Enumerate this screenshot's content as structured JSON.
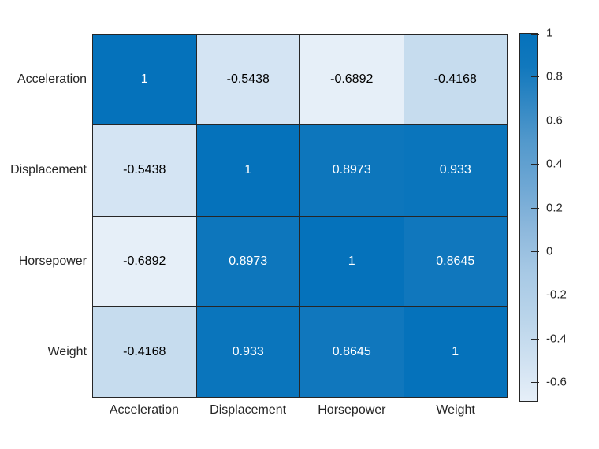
{
  "figure": {
    "background": "#ffffff"
  },
  "chart_data": {
    "type": "heatmap",
    "title": "",
    "xlabel": "",
    "ylabel": "",
    "x_categories": [
      "Acceleration",
      "Displacement",
      "Horsepower",
      "Weight"
    ],
    "y_categories": [
      "Acceleration",
      "Displacement",
      "Horsepower",
      "Weight"
    ],
    "matrix": [
      [
        1,
        -0.5438,
        -0.6892,
        -0.4168
      ],
      [
        -0.5438,
        1,
        0.8973,
        0.933
      ],
      [
        -0.6892,
        0.8973,
        1,
        0.8645
      ],
      [
        -0.4168,
        0.933,
        0.8645,
        1
      ]
    ],
    "matrix_labels": [
      [
        "1",
        "-0.5438",
        "-0.6892",
        "-0.4168"
      ],
      [
        "-0.5438",
        "1",
        "0.8973",
        "0.933"
      ],
      [
        "-0.6892",
        "0.8973",
        "1",
        "0.8645"
      ],
      [
        "-0.4168",
        "0.933",
        "0.8645",
        "1"
      ]
    ],
    "clim": [
      -0.6892,
      1
    ],
    "grid": true,
    "legend": "none",
    "colorbar": {
      "position": "right",
      "ticks": [
        1,
        0.8,
        0.6,
        0.4,
        0.2,
        0,
        -0.2,
        -0.4,
        -0.6
      ],
      "tick_labels": [
        "1",
        "0.8",
        "0.6",
        "0.4",
        "0.2",
        "0",
        "-0.2",
        "-0.4",
        "-0.6"
      ]
    },
    "colormap": [
      {
        "v": 1.0,
        "c": "#0572bb"
      },
      {
        "v": 0.85,
        "c": "#1178bd"
      },
      {
        "v": 0.7,
        "c": "#2e86c3"
      },
      {
        "v": 0.5,
        "c": "#5399cc"
      },
      {
        "v": 0.3,
        "c": "#6ea7d4"
      },
      {
        "v": 0.1,
        "c": "#8db8dc"
      },
      {
        "v": -0.1,
        "c": "#a7c9e5"
      },
      {
        "v": -0.3,
        "c": "#b9d4ea"
      },
      {
        "v": -0.5,
        "c": "#cfe1f1"
      },
      {
        "v": -0.6892,
        "c": "#e6eff8"
      }
    ],
    "colors": {
      "grid_line": "#262626",
      "axis_label": "#262626",
      "tick_label": "#262626",
      "cell_text_on_dark": "#ffffff",
      "cell_text_on_light": "#000000"
    }
  }
}
